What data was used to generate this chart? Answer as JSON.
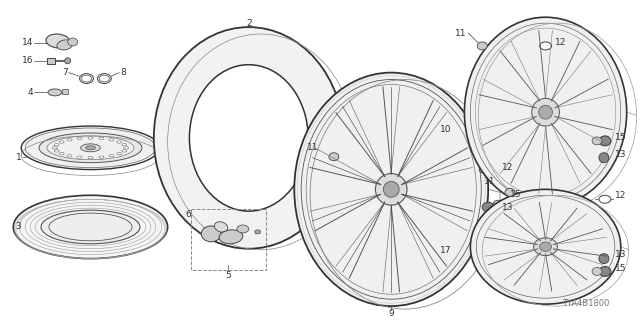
{
  "bg_color": "#ffffff",
  "diagram_id": "TYA4B1800",
  "fig_width": 6.4,
  "fig_height": 3.2,
  "dpi": 100,
  "line_color": "#444444",
  "text_color": "#333333",
  "font_size": 6.5,
  "diagram_id_fontsize": 6
}
